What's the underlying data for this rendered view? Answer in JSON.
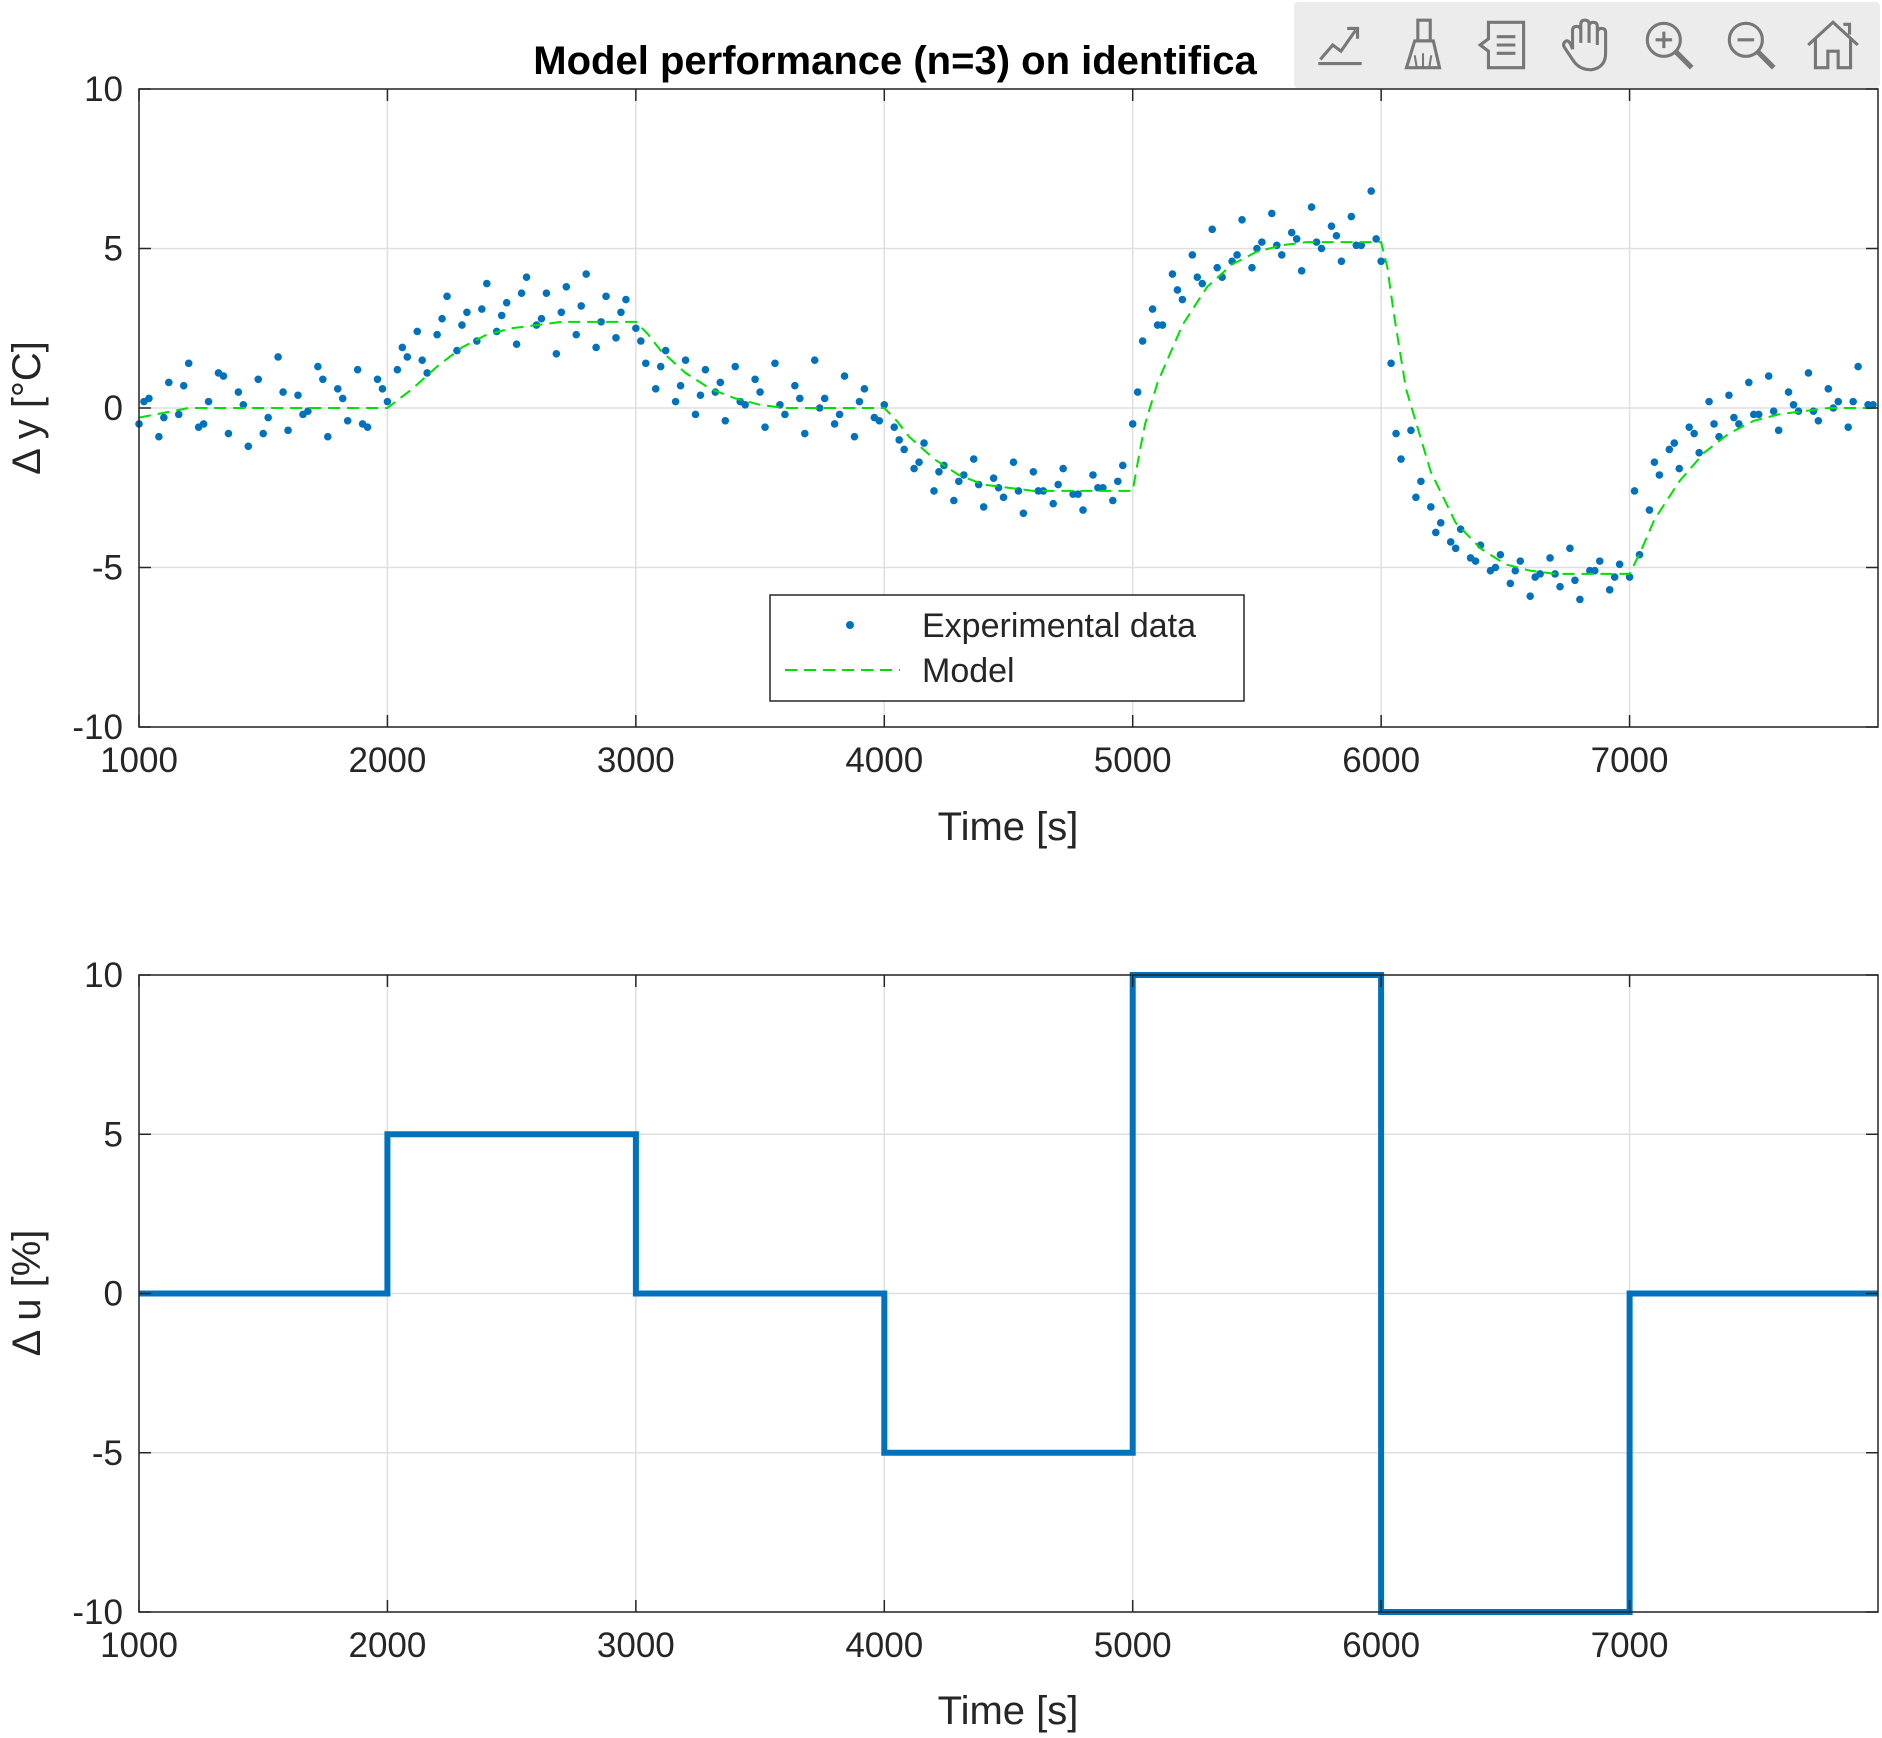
{
  "toolbar": {
    "buttons": [
      {
        "name": "export-icon"
      },
      {
        "name": "brush-icon"
      },
      {
        "name": "data-tips-icon"
      },
      {
        "name": "pan-hand-icon"
      },
      {
        "name": "zoom-in-icon"
      },
      {
        "name": "zoom-out-icon"
      },
      {
        "name": "home-icon"
      }
    ]
  },
  "chart_data": [
    {
      "type": "scatter",
      "title": "Model performance (n=3) on identifica",
      "xlabel": "Time [s]",
      "ylabel": "Δ y [°C]",
      "xlim": [
        1000,
        8000
      ],
      "ylim": [
        -10,
        10
      ],
      "xticks": [
        1000,
        2000,
        3000,
        4000,
        5000,
        6000,
        7000
      ],
      "yticks": [
        -10,
        -5,
        0,
        5,
        10
      ],
      "grid": true,
      "legend_position": "bottom-center",
      "series": [
        {
          "name": "Experimental data",
          "style": "dots",
          "color": "#0072BD",
          "x": [
            1000,
            1040,
            1080,
            1120,
            1160,
            1200,
            1240,
            1280,
            1320,
            1360,
            1400,
            1440,
            1480,
            1520,
            1560,
            1600,
            1640,
            1680,
            1720,
            1760,
            1800,
            1840,
            1880,
            1920,
            1960,
            2000,
            2040,
            2080,
            2120,
            2160,
            2200,
            2240,
            2280,
            2320,
            2360,
            2400,
            2440,
            2480,
            2520,
            2560,
            2600,
            2640,
            2680,
            2720,
            2760,
            2800,
            2840,
            2880,
            2920,
            2960,
            3000,
            3040,
            3080,
            3120,
            3160,
            3200,
            3240,
            3280,
            3320,
            3360,
            3400,
            3440,
            3480,
            3520,
            3560,
            3600,
            3640,
            3680,
            3720,
            3760,
            3800,
            3840,
            3880,
            3920,
            3960,
            4000,
            4040,
            4080,
            4120,
            4160,
            4200,
            4240,
            4280,
            4320,
            4360,
            4400,
            4440,
            4480,
            4520,
            4560,
            4600,
            4640,
            4680,
            4720,
            4760,
            4800,
            4840,
            4880,
            4920,
            4960,
            5000,
            5040,
            5080,
            5120,
            5160,
            5200,
            5240,
            5280,
            5320,
            5360,
            5400,
            5440,
            5480,
            5520,
            5560,
            5600,
            5640,
            5680,
            5720,
            5760,
            5800,
            5840,
            5880,
            5920,
            5960,
            6000,
            6040,
            6080,
            6120,
            6160,
            6200,
            6240,
            6280,
            6320,
            6360,
            6400,
            6440,
            6480,
            6520,
            6560,
            6600,
            6640,
            6680,
            6720,
            6760,
            6800,
            6840,
            6880,
            6920,
            6960,
            7000,
            7040,
            7080,
            7120,
            7160,
            7200,
            7240,
            7280,
            7320,
            7360,
            7400,
            7440,
            7480,
            7520,
            7560,
            7600,
            7640,
            7680,
            7720,
            7760,
            7800,
            7840,
            7880,
            7920,
            7960,
            1020,
            1100,
            1180,
            1260,
            1340,
            1420,
            1500,
            1580,
            1660,
            1740,
            1820,
            1900,
            1980,
            2060,
            2140,
            2220,
            2300,
            2380,
            2460,
            2540,
            2620,
            2700,
            2780,
            2860,
            2940,
            3020,
            3100,
            3180,
            3260,
            3340,
            3420,
            3500,
            3580,
            3660,
            3740,
            3820,
            3900,
            3980,
            4060,
            4140,
            4220,
            4300,
            4380,
            4460,
            4540,
            4620,
            4700,
            4780,
            4860,
            4940,
            5020,
            5100,
            5180,
            5260,
            5340,
            5420,
            5500,
            5580,
            5660,
            5740,
            5820,
            5900,
            5980,
            6060,
            6140,
            6220,
            6300,
            6380,
            6460,
            6540,
            6620,
            6700,
            6780,
            6860,
            6940,
            7020,
            7100,
            7180,
            7260,
            7340,
            7420,
            7500,
            7580,
            7660,
            7740,
            7820,
            7900,
            7980
          ],
          "y": [
            -0.5,
            0.3,
            -0.9,
            0.8,
            -0.2,
            1.4,
            -0.6,
            0.2,
            1.1,
            -0.8,
            0.5,
            -1.2,
            0.9,
            -0.3,
            1.6,
            -0.7,
            0.4,
            -0.1,
            1.3,
            -0.9,
            0.6,
            -0.4,
            1.2,
            -0.6,
            0.9,
            0.2,
            1.2,
            1.6,
            2.4,
            1.1,
            2.3,
            3.5,
            1.8,
            3.0,
            2.1,
            3.9,
            2.4,
            3.3,
            2.0,
            4.1,
            2.6,
            3.6,
            1.7,
            3.8,
            2.3,
            4.2,
            1.9,
            3.5,
            2.2,
            3.4,
            2.5,
            1.4,
            0.6,
            1.8,
            0.2,
            1.5,
            -0.2,
            1.2,
            0.5,
            -0.4,
            1.3,
            0.1,
            0.9,
            -0.6,
            1.4,
            -0.2,
            0.7,
            -0.8,
            1.5,
            0.3,
            -0.5,
            1.0,
            -0.9,
            0.6,
            -0.3,
            0.1,
            -0.6,
            -1.3,
            -1.9,
            -1.1,
            -2.6,
            -1.8,
            -2.9,
            -2.1,
            -1.6,
            -3.1,
            -2.2,
            -2.8,
            -1.7,
            -3.3,
            -2.0,
            -2.6,
            -3.0,
            -1.9,
            -2.7,
            -3.2,
            -2.1,
            -2.5,
            -2.9,
            -1.8,
            -0.5,
            2.1,
            3.1,
            2.6,
            4.2,
            3.4,
            4.8,
            3.9,
            5.6,
            4.1,
            4.6,
            5.9,
            4.4,
            5.2,
            6.1,
            4.8,
            5.5,
            4.3,
            6.3,
            5.0,
            5.7,
            4.6,
            6.0,
            5.1,
            6.8,
            4.6,
            1.4,
            -1.6,
            -0.7,
            -2.3,
            -3.1,
            -3.6,
            -4.2,
            -3.8,
            -4.7,
            -4.3,
            -5.1,
            -4.6,
            -5.5,
            -4.8,
            -5.9,
            -5.2,
            -4.7,
            -5.6,
            -4.4,
            -6.0,
            -5.1,
            -4.8,
            -5.7,
            -4.9,
            -5.3,
            -4.6,
            -3.2,
            -2.1,
            -1.3,
            -1.9,
            -0.6,
            -1.4,
            0.2,
            -0.9,
            0.4,
            -0.5,
            0.8,
            -0.2,
            1.0,
            -0.7,
            0.5,
            -0.1,
            1.1,
            -0.4,
            0.6,
            0.2,
            -0.6,
            1.3,
            0.1,
            0.2,
            -0.3,
            0.7,
            -0.5,
            1.0,
            0.1,
            -0.8,
            0.5,
            -0.2,
            0.9,
            0.3,
            -0.5,
            0.6,
            1.9,
            1.5,
            2.8,
            2.6,
            3.1,
            2.9,
            3.6,
            2.8,
            3.0,
            3.2,
            2.7,
            3.0,
            2.1,
            1.3,
            0.7,
            0.4,
            0.8,
            0.2,
            0.5,
            0.1,
            0.3,
            0.0,
            -0.2,
            0.2,
            -0.4,
            -1.0,
            -1.7,
            -2.0,
            -2.3,
            -2.4,
            -2.5,
            -2.6,
            -2.6,
            -2.4,
            -2.7,
            -2.5,
            -2.3,
            0.5,
            2.6,
            3.7,
            4.1,
            4.4,
            4.8,
            5.0,
            5.1,
            5.3,
            5.2,
            5.4,
            5.1,
            5.3,
            -0.8,
            -2.8,
            -3.9,
            -4.4,
            -4.8,
            -5.0,
            -5.1,
            -5.3,
            -5.2,
            -5.4,
            -5.1,
            -5.3,
            -2.6,
            -1.7,
            -1.1,
            -0.8,
            -0.5,
            -0.3,
            -0.2,
            -0.1,
            0.1,
            -0.1,
            0.0,
            0.2,
            0.1
          ]
        },
        {
          "name": "Model",
          "style": "dashed",
          "color": "#00E000",
          "x": [
            1000,
            1200,
            1400,
            1600,
            1800,
            2000,
            2050,
            2100,
            2200,
            2300,
            2400,
            2500,
            2600,
            2700,
            2800,
            2900,
            3000,
            3050,
            3100,
            3200,
            3300,
            3400,
            3500,
            3600,
            3700,
            3800,
            3900,
            4000,
            4050,
            4100,
            4200,
            4300,
            4400,
            4500,
            4600,
            4700,
            4800,
            4900,
            5000,
            5025,
            5050,
            5100,
            5200,
            5300,
            5400,
            5500,
            5600,
            5700,
            5800,
            5900,
            6000,
            6025,
            6050,
            6100,
            6200,
            6300,
            6400,
            6500,
            6600,
            6700,
            6800,
            6900,
            7000,
            7050,
            7100,
            7200,
            7300,
            7400,
            7500,
            7600,
            7700,
            7800,
            7900,
            8000
          ],
          "y": [
            -0.3,
            0.0,
            0.0,
            0.0,
            0.0,
            0.0,
            0.3,
            0.6,
            1.3,
            1.9,
            2.3,
            2.5,
            2.6,
            2.7,
            2.7,
            2.7,
            2.7,
            2.3,
            1.8,
            1.1,
            0.6,
            0.3,
            0.1,
            0.0,
            0.0,
            0.0,
            0.0,
            0.0,
            -0.4,
            -0.9,
            -1.6,
            -2.1,
            -2.4,
            -2.5,
            -2.6,
            -2.6,
            -2.6,
            -2.6,
            -2.6,
            -1.5,
            -0.5,
            0.8,
            2.6,
            3.8,
            4.5,
            4.9,
            5.1,
            5.2,
            5.2,
            5.2,
            5.2,
            4.4,
            3.0,
            0.6,
            -2.0,
            -3.6,
            -4.4,
            -4.9,
            -5.1,
            -5.2,
            -5.2,
            -5.2,
            -5.2,
            -4.4,
            -3.5,
            -2.3,
            -1.4,
            -0.8,
            -0.4,
            -0.2,
            -0.1,
            0.0,
            0.0,
            0.0
          ]
        }
      ]
    },
    {
      "type": "line",
      "title": "",
      "xlabel": "Time [s]",
      "ylabel": "Δ u [%]",
      "xlim": [
        1000,
        8000
      ],
      "ylim": [
        -10,
        10
      ],
      "xticks": [
        1000,
        2000,
        3000,
        4000,
        5000,
        6000,
        7000
      ],
      "yticks": [
        -10,
        -5,
        0,
        5,
        10
      ],
      "grid": true,
      "series": [
        {
          "style": "step",
          "color": "#0072BD",
          "x": [
            1000,
            2000,
            2000,
            3000,
            3000,
            4000,
            4000,
            5000,
            5000,
            6000,
            6000,
            7000,
            7000,
            8000
          ],
          "y": [
            0,
            0,
            5,
            5,
            0,
            0,
            -5,
            -5,
            10,
            10,
            -10,
            -10,
            0,
            0
          ]
        }
      ]
    }
  ]
}
